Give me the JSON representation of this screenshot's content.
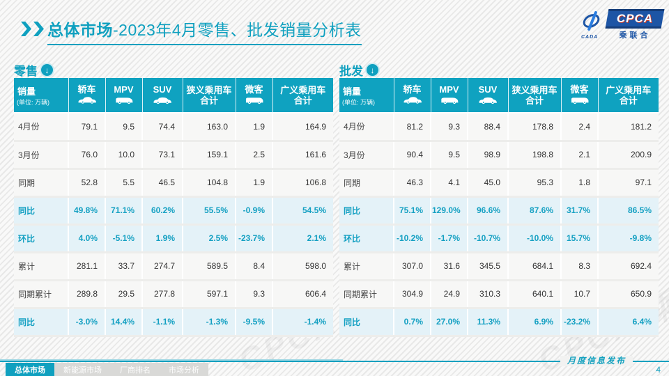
{
  "slide": {
    "title": {
      "bold": "总体市场",
      "rest": "-2023年4月零售、批发销量分析表"
    },
    "watermark": "CPCA 乘联合"
  },
  "logo": {
    "name": "CPCA",
    "sub": "乘联合",
    "swoosh": "CADA"
  },
  "tables": [
    {
      "section_label": "零售",
      "unit_title": "销量",
      "unit_sub": "(单位: 万辆)",
      "columns": [
        {
          "title": "轿车"
        },
        {
          "title": "MPV"
        },
        {
          "title": "SUV"
        },
        {
          "title": "狭义乘用车",
          "title2": "合计"
        },
        {
          "title": "微客"
        },
        {
          "title": "广义乘用车",
          "title2": "合计"
        }
      ],
      "rows": [
        {
          "label": "4月份",
          "highlight": false,
          "values": [
            "79.1",
            "9.5",
            "74.4",
            "163.0",
            "1.9",
            "164.9"
          ]
        },
        {
          "label": "3月份",
          "highlight": false,
          "values": [
            "76.0",
            "10.0",
            "73.1",
            "159.1",
            "2.5",
            "161.6"
          ]
        },
        {
          "label": "同期",
          "highlight": false,
          "values": [
            "52.8",
            "5.5",
            "46.5",
            "104.8",
            "1.9",
            "106.8"
          ]
        },
        {
          "label": "同比",
          "highlight": true,
          "values": [
            "49.8%",
            "71.1%",
            "60.2%",
            "55.5%",
            "-0.9%",
            "54.5%"
          ]
        },
        {
          "label": "环比",
          "highlight": true,
          "values": [
            "4.0%",
            "-5.1%",
            "1.9%",
            "2.5%",
            "-23.7%",
            "2.1%"
          ]
        },
        {
          "label": "累计",
          "highlight": false,
          "values": [
            "281.1",
            "33.7",
            "274.7",
            "589.5",
            "8.4",
            "598.0"
          ]
        },
        {
          "label": "同期累计",
          "highlight": false,
          "values": [
            "289.8",
            "29.5",
            "277.8",
            "597.1",
            "9.3",
            "606.4"
          ]
        },
        {
          "label": "同比",
          "highlight": true,
          "values": [
            "-3.0%",
            "14.4%",
            "-1.1%",
            "-1.3%",
            "-9.5%",
            "-1.4%"
          ]
        }
      ]
    },
    {
      "section_label": "批发",
      "unit_title": "销量",
      "unit_sub": "(单位: 万辆)",
      "columns": [
        {
          "title": "轿车"
        },
        {
          "title": "MPV"
        },
        {
          "title": "SUV"
        },
        {
          "title": "狭义乘用车",
          "title2": "合计"
        },
        {
          "title": "微客"
        },
        {
          "title": "广义乘用车",
          "title2": "合计"
        }
      ],
      "rows": [
        {
          "label": "4月份",
          "highlight": false,
          "values": [
            "81.2",
            "9.3",
            "88.4",
            "178.8",
            "2.4",
            "181.2"
          ]
        },
        {
          "label": "3月份",
          "highlight": false,
          "values": [
            "90.4",
            "9.5",
            "98.9",
            "198.8",
            "2.1",
            "200.9"
          ]
        },
        {
          "label": "同期",
          "highlight": false,
          "values": [
            "46.3",
            "4.1",
            "45.0",
            "95.3",
            "1.8",
            "97.1"
          ]
        },
        {
          "label": "同比",
          "highlight": true,
          "values": [
            "75.1%",
            "129.0%",
            "96.6%",
            "87.6%",
            "31.7%",
            "86.5%"
          ]
        },
        {
          "label": "环比",
          "highlight": true,
          "values": [
            "-10.2%",
            "-1.7%",
            "-10.7%",
            "-10.0%",
            "15.7%",
            "-9.8%"
          ]
        },
        {
          "label": "累计",
          "highlight": false,
          "values": [
            "307.0",
            "31.6",
            "345.5",
            "684.1",
            "8.3",
            "692.4"
          ]
        },
        {
          "label": "同期累计",
          "highlight": false,
          "values": [
            "304.9",
            "24.9",
            "310.3",
            "640.1",
            "10.7",
            "650.9"
          ]
        },
        {
          "label": "同比",
          "highlight": true,
          "values": [
            "0.7%",
            "27.0%",
            "11.3%",
            "6.9%",
            "-23.2%",
            "6.4%"
          ]
        }
      ]
    }
  ],
  "icons": {
    "section_arrow": "↓"
  },
  "colors": {
    "accent": "#0fa0bf",
    "header_bg": "#0fa2c0",
    "highlight_row_bg": "#e4f2f8",
    "logo_blue": "#1d55a5"
  },
  "footer": {
    "tabs": [
      {
        "label": "总体市场",
        "active": true
      },
      {
        "label": "新能源市场",
        "active": false
      },
      {
        "label": "厂商排名",
        "active": false
      },
      {
        "label": "市场分析",
        "active": false
      }
    ],
    "release_note": "月度信息发布",
    "page_number": "4"
  }
}
